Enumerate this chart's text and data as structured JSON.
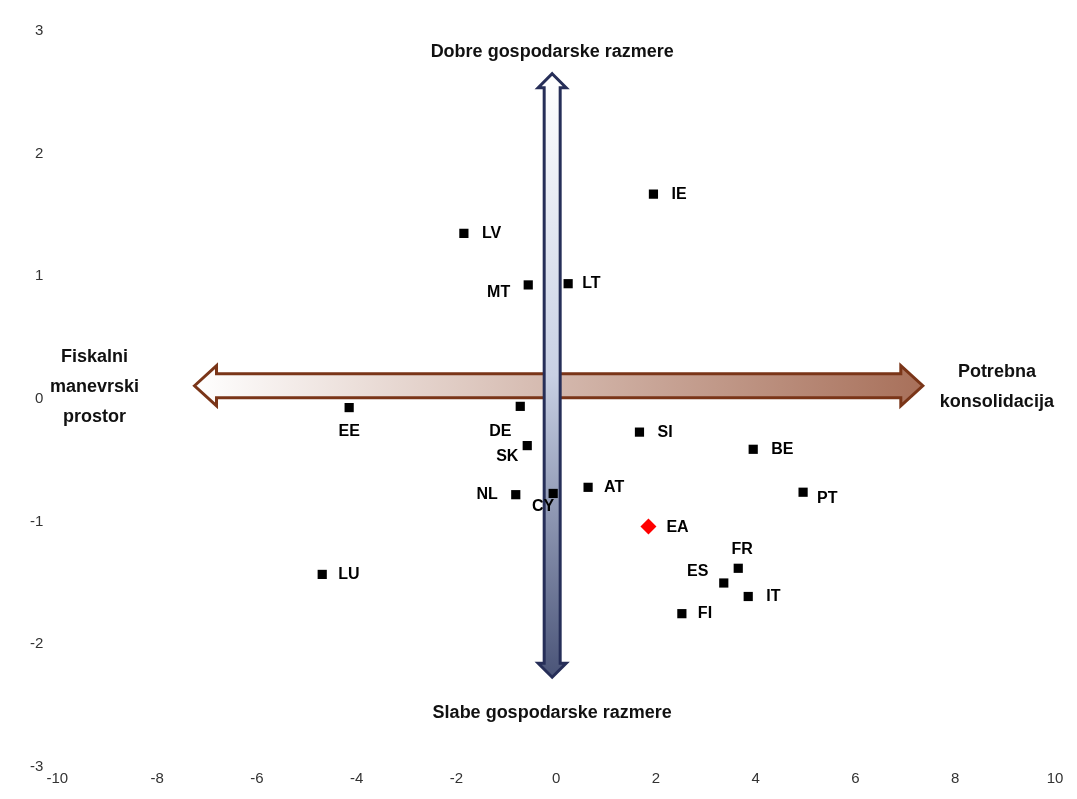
{
  "chart_data": {
    "type": "scatter",
    "xlim": [
      -10,
      10
    ],
    "ylim": [
      -3,
      3
    ],
    "xticks": [
      -10,
      -8,
      -6,
      -4,
      -2,
      0,
      2,
      4,
      6,
      8,
      10
    ],
    "yticks": [
      -3,
      -2,
      -1,
      0,
      1,
      2,
      3
    ],
    "grid": false,
    "legend": false,
    "marker": "square",
    "annotations": [
      "Dobre gospodarske razmere",
      "Slabe gospodarske razmere",
      "Fiskalni manevrski prostor",
      "Potrebna konsolidacija"
    ],
    "series": [
      {
        "name": "IE",
        "color": "#000000",
        "x": [
          1.95
        ],
        "values": [
          1.67
        ]
      },
      {
        "name": "LV",
        "color": "#000000",
        "x": [
          -1.85
        ],
        "values": [
          1.35
        ]
      },
      {
        "name": "MT",
        "color": "#000000",
        "x": [
          -0.56
        ],
        "values": [
          0.93
        ]
      },
      {
        "name": "LT",
        "color": "#000000",
        "x": [
          0.24
        ],
        "values": [
          0.94
        ]
      },
      {
        "name": "EE",
        "color": "#000000",
        "x": [
          -4.15
        ],
        "values": [
          -0.07
        ]
      },
      {
        "name": "DE",
        "color": "#000000",
        "x": [
          -0.72
        ],
        "values": [
          -0.06
        ]
      },
      {
        "name": "SI",
        "color": "#000000",
        "x": [
          1.67
        ],
        "values": [
          -0.27
        ]
      },
      {
        "name": "SK",
        "color": "#000000",
        "x": [
          -0.58
        ],
        "values": [
          -0.38
        ]
      },
      {
        "name": "BE",
        "color": "#000000",
        "x": [
          3.95
        ],
        "values": [
          -0.41
        ]
      },
      {
        "name": "AT",
        "color": "#000000",
        "x": [
          0.64
        ],
        "values": [
          -0.72
        ]
      },
      {
        "name": "NL",
        "color": "#000000",
        "x": [
          -0.81
        ],
        "values": [
          -0.78
        ]
      },
      {
        "name": "CY",
        "color": "#000000",
        "x": [
          -0.06
        ],
        "values": [
          -0.77
        ]
      },
      {
        "name": "PT",
        "color": "#000000",
        "x": [
          4.95
        ],
        "values": [
          -0.76
        ]
      },
      {
        "name": "EA",
        "color": "#ff0000",
        "marker": "diamond",
        "x": [
          1.85
        ],
        "values": [
          -1.04
        ]
      },
      {
        "name": "FR",
        "color": "#000000",
        "x": [
          3.65
        ],
        "values": [
          -1.38
        ]
      },
      {
        "name": "ES",
        "color": "#000000",
        "x": [
          3.36
        ],
        "values": [
          -1.5
        ]
      },
      {
        "name": "IT",
        "color": "#000000",
        "x": [
          3.85
        ],
        "values": [
          -1.61
        ]
      },
      {
        "name": "FI",
        "color": "#000000",
        "x": [
          2.52
        ],
        "values": [
          -1.75
        ]
      },
      {
        "name": "LU",
        "color": "#000000",
        "x": [
          -4.69
        ],
        "values": [
          -1.43
        ]
      }
    ]
  }
}
